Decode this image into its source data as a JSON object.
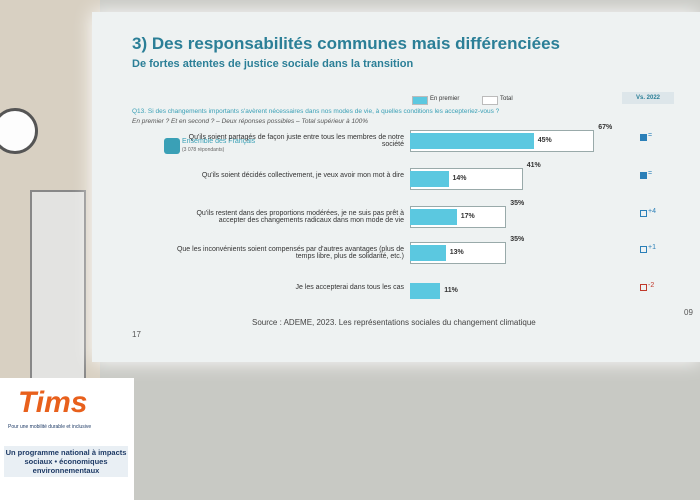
{
  "slide": {
    "title": "3) Des responsabilités communes mais différenciées",
    "subtitle": "De fortes attentes de justice sociale dans la transition",
    "question": "Q13. Si des changements importants s'avèrent nécessaires dans nos modes de vie, à quelles conditions les accepteriez-vous ?",
    "question_note": "En premier ? Et en second ? – Deux réponses possibles – Total supérieur à 100%",
    "population": "Ensemble des Français",
    "population_note": "(3 078 répondants)",
    "comparison_header": "Vs. 2022",
    "comparisons": [
      "=",
      "=",
      "+4",
      "+1",
      "-2"
    ],
    "comparison_colors": [
      "#2a7fb8",
      "#2a7fb8",
      "#2a7fb8",
      "#2a7fb8",
      "#c0392b"
    ],
    "source": "Source : ADEME, 2023. Les représentations sociales du changement climatique",
    "page": "17",
    "corner": "09"
  },
  "chart_data": {
    "type": "bar",
    "orientation": "horizontal",
    "categories": [
      "Qu'ils soient partagés de façon juste entre tous les membres de notre société",
      "Qu'ils soient décidés collectivement, je veux avoir mon mot à dire",
      "Qu'ils restent dans des proportions modérées, je ne suis pas prêt à accepter des changements radicaux dans mon mode de vie",
      "Que les inconvénients soient compensés par d'autres avantages (plus de temps libre, plus de solidarité, etc.)",
      "Je les accepterai dans tous les cas"
    ],
    "series": [
      {
        "name": "En premier",
        "color": "#5bc8e0",
        "values": [
          45,
          14,
          17,
          13,
          11
        ],
        "value_labels": [
          "45%",
          "14%",
          "17%",
          "13%",
          "11%"
        ]
      },
      {
        "name": "Total",
        "color": "#ffffff",
        "values": [
          67,
          41,
          35,
          35,
          null
        ],
        "value_labels": [
          "67%",
          "41%",
          "35%",
          "35%",
          null
        ]
      }
    ]
  },
  "banner": {
    "logo": "Tims",
    "tagline": "Pour une mobilité durable et inclusive",
    "text": "Un programme national à impacts sociaux • économiques environnementaux"
  }
}
